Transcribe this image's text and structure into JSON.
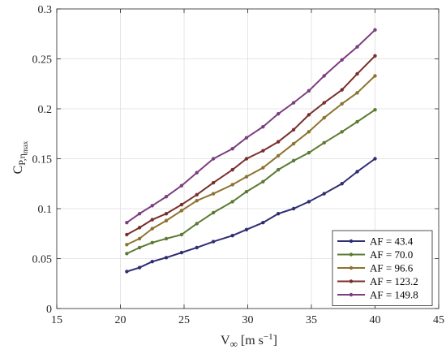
{
  "chart_data": {
    "type": "line",
    "xlabel": {
      "main": "V",
      "sub": "∞",
      "unit_pre": "[m s",
      "unit_sup": "−1",
      "unit_post": "]"
    },
    "ylabel": {
      "main": "C",
      "sub": "P,η",
      "subsub": "max"
    },
    "xlim": [
      15,
      45
    ],
    "ylim": [
      0,
      0.3
    ],
    "xticks": [
      15,
      20,
      25,
      30,
      35,
      40,
      45
    ],
    "yticks": [
      0,
      0.05,
      0.1,
      0.15,
      0.2,
      0.25,
      0.3
    ],
    "xtick_labels": [
      "15",
      "20",
      "25",
      "30",
      "35",
      "40",
      "45"
    ],
    "ytick_labels": [
      "0",
      "0.05",
      "0.1",
      "0.15",
      "0.2",
      "0.25",
      "0.3"
    ],
    "grid": true,
    "legend_position": "bottom-right",
    "x": [
      20.5,
      21.5,
      22.5,
      23.6,
      24.8,
      26.0,
      27.3,
      28.8,
      29.9,
      31.2,
      32.4,
      33.6,
      34.8,
      36.0,
      37.4,
      38.6,
      40.0
    ],
    "series": [
      {
        "name": "AF = 43.4",
        "color": "#2e2e72",
        "values": [
          0.037,
          0.041,
          0.047,
          0.051,
          0.056,
          0.061,
          0.067,
          0.073,
          0.079,
          0.086,
          0.095,
          0.1,
          0.107,
          0.115,
          0.125,
          0.137,
          0.15
        ]
      },
      {
        "name": "AF = 70.0",
        "color": "#5b7a33",
        "values": [
          0.055,
          0.061,
          0.066,
          0.07,
          0.074,
          0.085,
          0.096,
          0.107,
          0.117,
          0.127,
          0.139,
          0.148,
          0.156,
          0.166,
          0.177,
          0.187,
          0.199
        ]
      },
      {
        "name": "AF = 96.6",
        "color": "#8c7330",
        "values": [
          0.064,
          0.07,
          0.08,
          0.088,
          0.098,
          0.108,
          0.115,
          0.124,
          0.132,
          0.141,
          0.153,
          0.165,
          0.177,
          0.191,
          0.205,
          0.216,
          0.233
        ]
      },
      {
        "name": "AF = 123.2",
        "color": "#7a2e2e",
        "values": [
          0.074,
          0.081,
          0.089,
          0.095,
          0.104,
          0.114,
          0.126,
          0.139,
          0.15,
          0.158,
          0.167,
          0.179,
          0.194,
          0.206,
          0.219,
          0.235,
          0.253
        ]
      },
      {
        "name": "AF = 149.8",
        "color": "#7a3f7f",
        "values": [
          0.086,
          0.095,
          0.103,
          0.112,
          0.123,
          0.136,
          0.15,
          0.16,
          0.171,
          0.182,
          0.195,
          0.206,
          0.218,
          0.233,
          0.249,
          0.262,
          0.279
        ]
      }
    ]
  }
}
